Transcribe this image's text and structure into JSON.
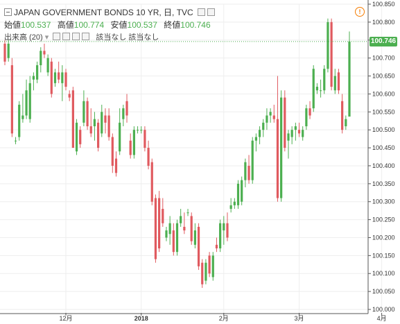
{
  "header": {
    "title": "JAPAN GOVERNMENT BONDS 10 YR, 日, TVC",
    "ohlc": [
      {
        "label": "始値",
        "value": "100.537"
      },
      {
        "label": "高値",
        "value": "100.774"
      },
      {
        "label": "安値",
        "value": "100.537"
      },
      {
        "label": "終値",
        "value": "100.746"
      }
    ],
    "volume_label": "出来高 (20)",
    "volume_values": "該当なし 該当なし",
    "warning_icon": "warning-icon"
  },
  "last_price_label": "100.746",
  "colors": {
    "up": "#4caf50",
    "down": "#e05a5f",
    "grid": "#eeeeee",
    "axis": "#555555",
    "last_price_line": "#4caf50"
  },
  "chart_data": {
    "type": "candlestick",
    "title": "JAPAN GOVERNMENT BONDS 10 YR, 日, TVC",
    "y_range": [
      100.0,
      100.85
    ],
    "y_ticks": [
      "100.850",
      "100.800",
      "100.750",
      "100.700",
      "100.650",
      "100.600",
      "100.550",
      "100.500",
      "100.450",
      "100.400",
      "100.350",
      "100.300",
      "100.250",
      "100.200",
      "100.150",
      "100.100",
      "100.050",
      "100.000"
    ],
    "x_ticks": [
      {
        "label": "12月",
        "index": 17
      },
      {
        "label": "2018",
        "index": 38
      },
      {
        "label": "2月",
        "index": 61
      },
      {
        "label": "3月",
        "index": 82
      },
      {
        "label": "4月",
        "index": 105
      }
    ],
    "last_price": 100.746,
    "candles": [
      [
        100.74,
        100.75,
        100.68,
        100.69
      ],
      [
        100.7,
        100.75,
        100.69,
        100.74
      ],
      [
        100.68,
        100.7,
        100.48,
        100.49
      ],
      [
        100.47,
        100.48,
        100.46,
        100.47
      ],
      [
        100.48,
        100.58,
        100.47,
        100.57
      ],
      [
        100.53,
        100.6,
        100.52,
        100.54
      ],
      [
        100.54,
        100.64,
        100.53,
        100.61
      ],
      [
        100.53,
        100.65,
        100.52,
        100.63
      ],
      [
        100.64,
        100.66,
        100.61,
        100.65
      ],
      [
        100.64,
        100.69,
        100.63,
        100.68
      ],
      [
        100.68,
        100.73,
        100.66,
        100.72
      ],
      [
        100.72,
        100.74,
        100.7,
        100.71
      ],
      [
        100.66,
        100.71,
        100.65,
        100.7
      ],
      [
        100.69,
        100.7,
        100.59,
        100.6
      ],
      [
        100.63,
        100.67,
        100.62,
        100.66
      ],
      [
        100.66,
        100.69,
        100.63,
        100.64
      ],
      [
        100.63,
        100.68,
        100.58,
        100.66
      ],
      [
        100.66,
        100.67,
        100.61,
        100.62
      ],
      [
        100.6,
        100.61,
        100.58,
        100.59
      ],
      [
        100.61,
        100.62,
        100.45,
        100.45
      ],
      [
        100.44,
        100.53,
        100.43,
        100.52
      ],
      [
        100.5,
        100.51,
        100.45,
        100.46
      ],
      [
        100.52,
        100.61,
        100.51,
        100.58
      ],
      [
        100.58,
        100.59,
        100.5,
        100.51
      ],
      [
        100.51,
        100.56,
        100.48,
        100.49
      ],
      [
        100.51,
        100.55,
        100.47,
        100.53
      ],
      [
        100.52,
        100.53,
        100.44,
        100.45
      ],
      [
        100.49,
        100.57,
        100.48,
        100.55
      ],
      [
        100.54,
        100.56,
        100.49,
        100.52
      ],
      [
        100.54,
        100.56,
        100.47,
        100.48
      ],
      [
        100.48,
        100.49,
        100.38,
        100.4
      ],
      [
        100.42,
        100.44,
        100.37,
        100.38
      ],
      [
        100.44,
        100.56,
        100.43,
        100.52
      ],
      [
        100.53,
        100.57,
        100.51,
        100.56
      ],
      [
        100.58,
        100.6,
        100.52,
        100.54
      ],
      [
        100.47,
        100.49,
        100.42,
        100.43
      ],
      [
        100.43,
        100.51,
        100.42,
        100.5
      ],
      [
        100.5,
        100.51,
        100.49,
        100.5
      ],
      [
        100.5,
        100.51,
        100.49,
        100.5
      ],
      [
        100.5,
        100.51,
        100.44,
        100.45
      ],
      [
        100.45,
        100.47,
        100.39,
        100.4
      ],
      [
        100.41,
        100.42,
        100.29,
        100.3
      ],
      [
        100.31,
        100.32,
        100.13,
        100.14
      ],
      [
        100.31,
        100.33,
        100.16,
        100.17
      ],
      [
        100.28,
        100.31,
        100.23,
        100.24
      ],
      [
        100.2,
        100.23,
        100.19,
        100.22
      ],
      [
        100.21,
        100.26,
        100.18,
        100.24
      ],
      [
        100.22,
        100.24,
        100.15,
        100.16
      ],
      [
        100.16,
        100.25,
        100.15,
        100.24
      ],
      [
        100.24,
        100.28,
        100.23,
        100.26
      ],
      [
        100.23,
        100.27,
        100.21,
        100.22
      ],
      [
        100.27,
        100.28,
        100.26,
        100.27
      ],
      [
        100.26,
        100.27,
        100.18,
        100.19
      ],
      [
        100.18,
        100.24,
        100.17,
        100.22
      ],
      [
        100.23,
        100.24,
        100.11,
        100.12
      ],
      [
        100.13,
        100.14,
        100.06,
        100.07
      ],
      [
        100.08,
        100.14,
        100.07,
        100.13
      ],
      [
        100.15,
        100.16,
        100.09,
        100.1
      ],
      [
        100.09,
        100.16,
        100.08,
        100.15
      ],
      [
        100.18,
        100.2,
        100.16,
        100.17
      ],
      [
        100.17,
        100.25,
        100.16,
        100.24
      ],
      [
        100.22,
        100.26,
        100.18,
        100.24
      ],
      [
        100.24,
        100.27,
        100.19,
        100.2
      ],
      [
        100.28,
        100.31,
        100.27,
        100.29
      ],
      [
        100.29,
        100.31,
        100.28,
        100.3
      ],
      [
        100.29,
        100.36,
        100.28,
        100.35
      ],
      [
        100.3,
        100.37,
        100.29,
        100.36
      ],
      [
        100.36,
        100.42,
        100.34,
        100.41
      ],
      [
        100.4,
        100.43,
        100.35,
        100.36
      ],
      [
        100.36,
        100.48,
        100.35,
        100.47
      ],
      [
        100.47,
        100.49,
        100.44,
        100.48
      ],
      [
        100.48,
        100.51,
        100.46,
        100.5
      ],
      [
        100.5,
        100.53,
        100.48,
        100.52
      ],
      [
        100.52,
        100.56,
        100.5,
        100.54
      ],
      [
        100.54,
        100.56,
        100.52,
        100.55
      ],
      [
        100.54,
        100.57,
        100.52,
        100.53
      ],
      [
        100.53,
        100.65,
        100.3,
        100.31
      ],
      [
        100.31,
        100.61,
        100.3,
        100.59
      ],
      [
        100.59,
        100.61,
        100.44,
        100.45
      ],
      [
        100.47,
        100.5,
        100.42,
        100.49
      ],
      [
        100.48,
        100.51,
        100.46,
        100.5
      ],
      [
        100.5,
        100.52,
        100.47,
        100.51
      ],
      [
        100.5,
        100.52,
        100.48,
        100.49
      ],
      [
        100.48,
        100.51,
        100.47,
        100.5
      ],
      [
        100.51,
        100.57,
        100.5,
        100.56
      ],
      [
        100.56,
        100.58,
        100.53,
        100.54
      ],
      [
        100.56,
        100.68,
        100.55,
        100.67
      ],
      [
        100.61,
        100.63,
        100.6,
        100.62
      ],
      [
        100.61,
        100.64,
        100.59,
        100.61
      ],
      [
        100.61,
        100.68,
        100.6,
        100.67
      ],
      [
        100.67,
        100.81,
        100.66,
        100.8
      ],
      [
        100.8,
        100.81,
        100.61,
        100.62
      ],
      [
        100.61,
        100.67,
        100.6,
        100.65
      ],
      [
        100.66,
        100.67,
        100.6,
        100.61
      ],
      [
        100.58,
        100.6,
        100.49,
        100.5
      ],
      [
        100.51,
        100.54,
        100.5,
        100.53
      ],
      [
        100.537,
        100.774,
        100.537,
        100.746
      ]
    ]
  }
}
